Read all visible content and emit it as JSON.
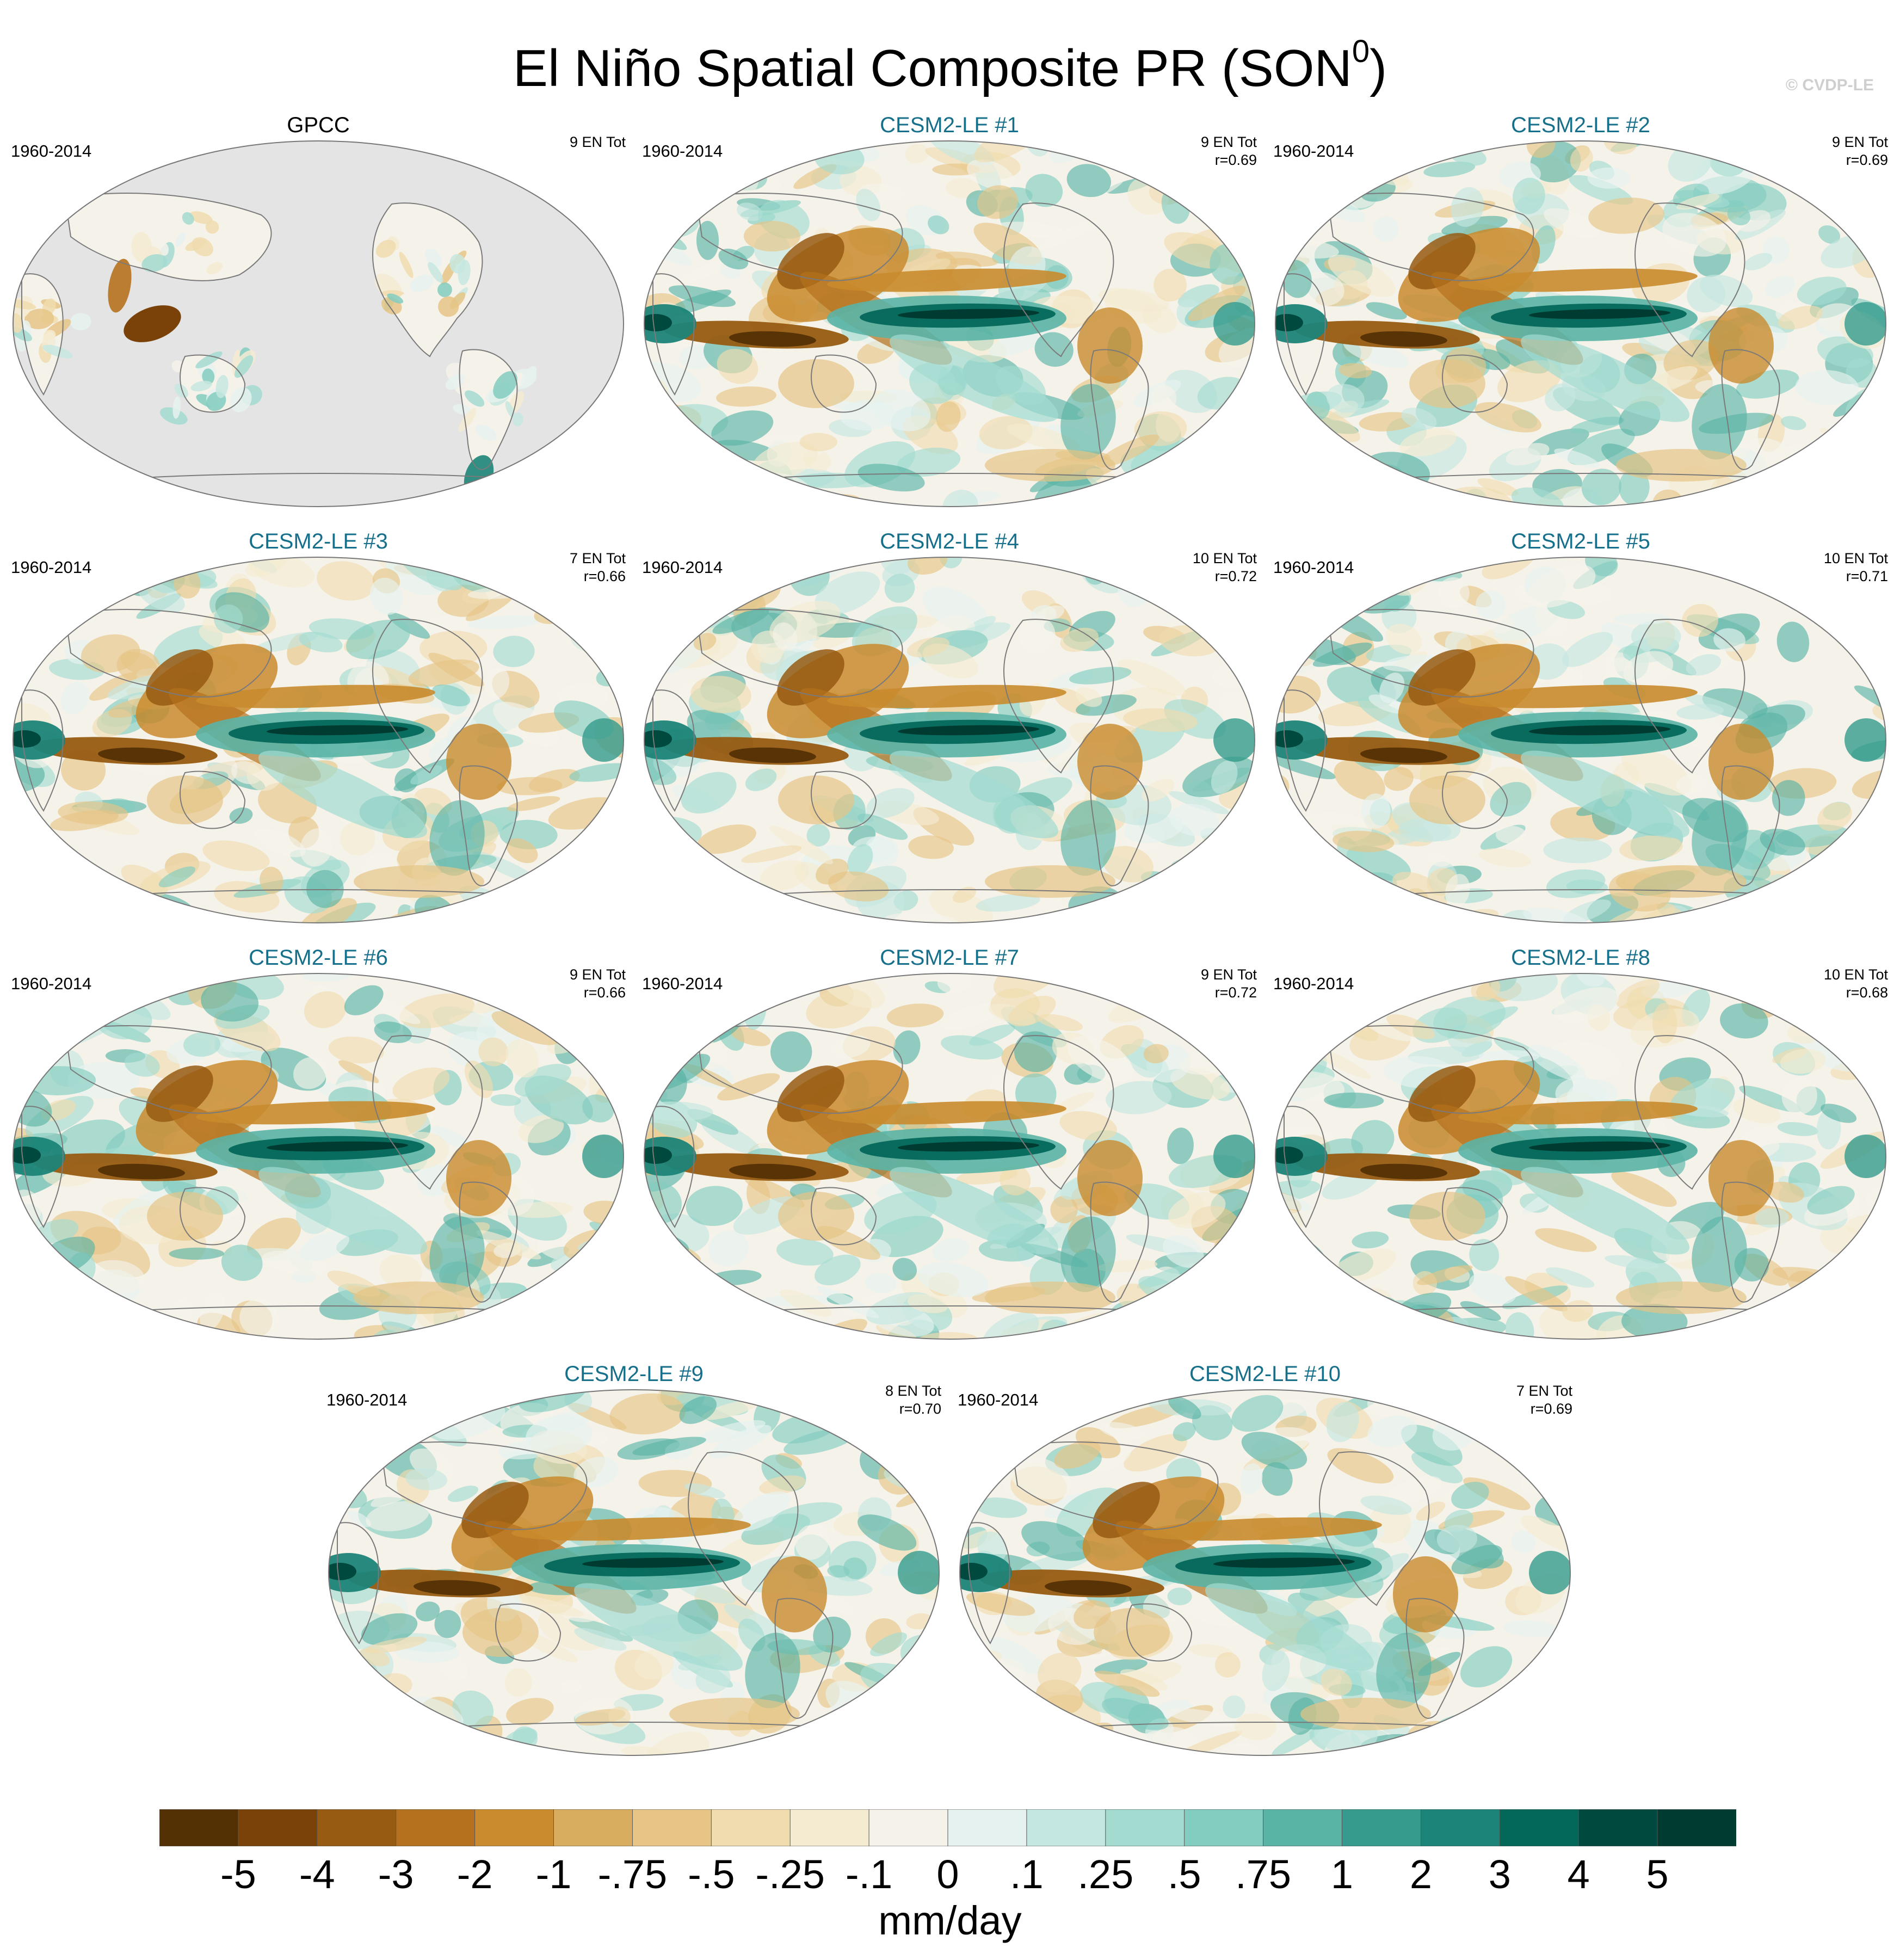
{
  "title": {
    "main": "El Niño Spatial Composite PR (SON",
    "superscript": "0",
    "close": ")"
  },
  "credit": "© CVDP-LE",
  "colors": {
    "title_model": "#17708b",
    "ocean_obs": "#e4e4e4",
    "coast": "#7a7a7a"
  },
  "chart_data": {
    "type": "heatmap",
    "projection": "Robinson (Pacific-centered)",
    "units": "mm/day",
    "colorbar": {
      "levels": [
        "-5",
        "-4",
        "-3",
        "-2",
        "-1",
        "-.75",
        "-.5",
        "-.25",
        "-.1",
        "0",
        ".1",
        ".25",
        ".5",
        ".75",
        "1",
        "2",
        "3",
        "4",
        "5"
      ],
      "colors": [
        "#543005",
        "#7a4208",
        "#975b12",
        "#b5711d",
        "#c98b2e",
        "#d9ad5f",
        "#e6c586",
        "#f0dcaf",
        "#f5ebd1",
        "#f5f2ea",
        "#e6f2ef",
        "#c5e7e1",
        "#a3dbd1",
        "#82cdc0",
        "#5ab4a6",
        "#359b8c",
        "#1c8478",
        "#03675a",
        "#00493f",
        "#003b31"
      ]
    },
    "panels": [
      {
        "name": "GPCC",
        "period": "1960-2014",
        "events": "9 EN Tot",
        "r": "",
        "source": "obs"
      },
      {
        "name": "CESM2-LE #1",
        "period": "1960-2014",
        "events": "9 EN Tot",
        "r": "r=0.69",
        "source": "model"
      },
      {
        "name": "CESM2-LE #2",
        "period": "1960-2014",
        "events": "9 EN Tot",
        "r": "r=0.69",
        "source": "model"
      },
      {
        "name": "CESM2-LE #3",
        "period": "1960-2014",
        "events": "7 EN Tot",
        "r": "r=0.66",
        "source": "model"
      },
      {
        "name": "CESM2-LE #4",
        "period": "1960-2014",
        "events": "10 EN Tot",
        "r": "r=0.72",
        "source": "model"
      },
      {
        "name": "CESM2-LE #5",
        "period": "1960-2014",
        "events": "10 EN Tot",
        "r": "r=0.71",
        "source": "model"
      },
      {
        "name": "CESM2-LE #6",
        "period": "1960-2014",
        "events": "9 EN Tot",
        "r": "r=0.66",
        "source": "model"
      },
      {
        "name": "CESM2-LE #7",
        "period": "1960-2014",
        "events": "9 EN Tot",
        "r": "r=0.72",
        "source": "model"
      },
      {
        "name": "CESM2-LE #8",
        "period": "1960-2014",
        "events": "10 EN Tot",
        "r": "r=0.68",
        "source": "model"
      },
      {
        "name": "CESM2-LE #9",
        "period": "1960-2014",
        "events": "8 EN Tot",
        "r": "r=0.70",
        "source": "model"
      },
      {
        "name": "CESM2-LE #10",
        "period": "1960-2014",
        "events": "7 EN Tot",
        "r": "r=0.69",
        "source": "model"
      }
    ]
  }
}
